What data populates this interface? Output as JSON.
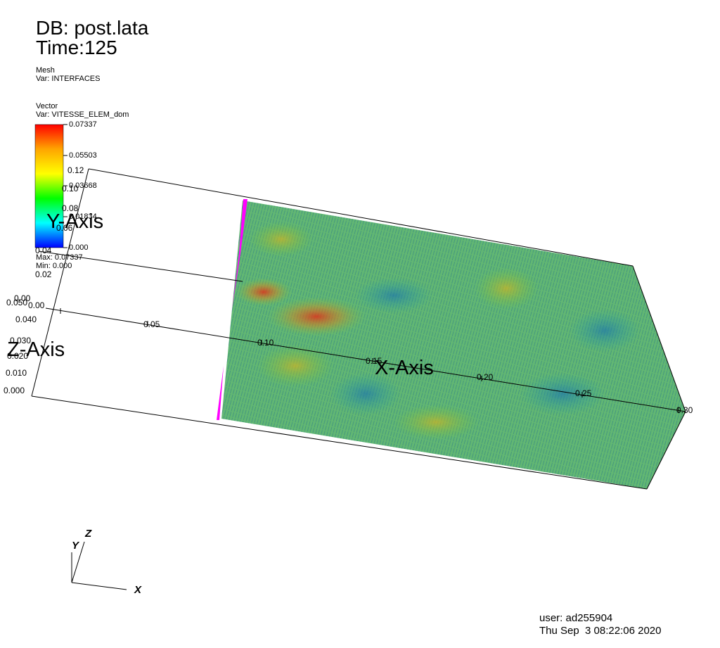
{
  "header": {
    "db_label": "DB: post.lata",
    "time_label": "Time:125"
  },
  "mesh_plot": {
    "type_label": "Mesh",
    "var_label": "Var: INTERFACES"
  },
  "vector_plot": {
    "type_label": "Vector",
    "var_label": "Var: VITESSE_ELEM_dom",
    "legend": {
      "tick_labels": [
        "0.07337",
        "0.05503",
        "0.03668",
        "0.01834",
        "0.000"
      ],
      "max_label": "Max: 0.07337",
      "min_label": "Min: 0.000",
      "colors": [
        "#ff0000",
        "#ffa500",
        "#ffff00",
        "#00ff00",
        "#00ffff",
        "#0000ff"
      ]
    }
  },
  "axes": {
    "x_title": "X-Axis",
    "y_title": "Y-Axis",
    "z_title": "Z-Axis",
    "x_ticks": [
      "0.00",
      "0.05",
      "0.10",
      "0.15",
      "0.20",
      "0.25",
      "0.30"
    ],
    "y_ticks": [
      "0.12",
      "0.10",
      "0.08",
      "0.06",
      "0.04",
      "0.02",
      "0.00"
    ],
    "z_ticks": [
      "0.050",
      "0.040",
      "0.030",
      "0.020",
      "0.010",
      "0.000"
    ]
  },
  "triad": {
    "x": "X",
    "y": "Y",
    "z": "Z"
  },
  "footer": {
    "user": "user: ad255904",
    "date": "Thu Sep  3 08:22:06 2020"
  },
  "colors": {
    "interface": "#ff00ff",
    "vector_field_dominant": "#3cb43c"
  }
}
